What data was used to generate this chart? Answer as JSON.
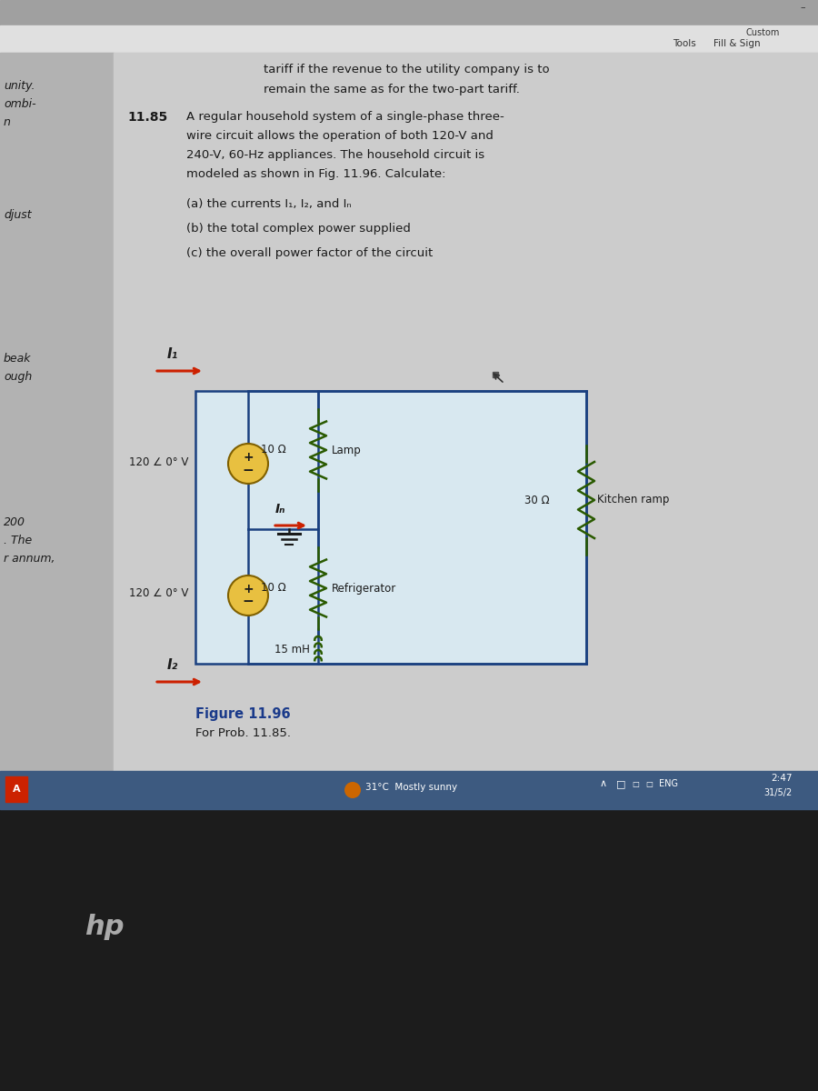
{
  "bg_chrome_top": "#a8a8a8",
  "bg_toolbar": "#dedede",
  "bg_content": "#c8c8c8",
  "bg_left_panel": "#b5b5b5",
  "bg_taskbar": "#3d5a80",
  "bg_laptop": "#1a1a1a",
  "circuit_bg": "#d8e8f0",
  "circuit_border": "#1a4080",
  "wire_color": "#1a4080",
  "resistor_color": "#2a5a00",
  "inductor_color": "#2a5a00",
  "source_fill": "#e8c040",
  "source_edge": "#806000",
  "arrow_color": "#cc2000",
  "text_dark": "#1a1a1a",
  "text_blue": "#1a3a8a",
  "text_gray": "#444444",
  "fig_label_color": "#1a3a8a",
  "problem_text_line1": "tariff if the revenue to the utility company is to",
  "problem_text_line2": "remain the same as for the two-part tariff.",
  "prob_number": "11.85",
  "prob_text1": "A regular household system of a single-phase three-",
  "prob_text2": "wire circuit allows the operation of both 120-V and",
  "prob_text3": "240-V, 60-Hz appliances. The household circuit is",
  "prob_text4": "modeled as shown in Fig. 11.96. Calculate:",
  "part_a": "(a) the currents I₁, I₂, and Iₙ",
  "part_b": "(b) the total complex power supplied",
  "part_c": "(c) the overall power factor of the circuit",
  "voltage1": "120 ∠ 0° V",
  "voltage2": "120 ∠ 0° V",
  "r1_label": "10 Ω",
  "r2_label": "10 Ω",
  "r3_label": "30 Ω",
  "l1_label": "15 mH",
  "load1_label": "Lamp",
  "load2_label": "Kitchen ramp",
  "load3_label": "Refrigerator",
  "I1_label": "I₁",
  "In_label": "Iₙ",
  "I2_label": "I₂",
  "fig_label": "Figure 11.96",
  "fig_sublabel": "For Prob. 11.85.",
  "left_words": [
    [
      "unity.",
      88
    ],
    [
      "ombi-",
      108
    ],
    [
      "n",
      128
    ],
    [
      "djust",
      230
    ],
    [
      "beak",
      388
    ],
    [
      "ough",
      408
    ],
    [
      "200",
      568
    ],
    [
      ". The",
      588
    ],
    [
      "r annum,",
      608
    ]
  ],
  "taskbar_time": "2:47",
  "taskbar_date": "31/5/2"
}
